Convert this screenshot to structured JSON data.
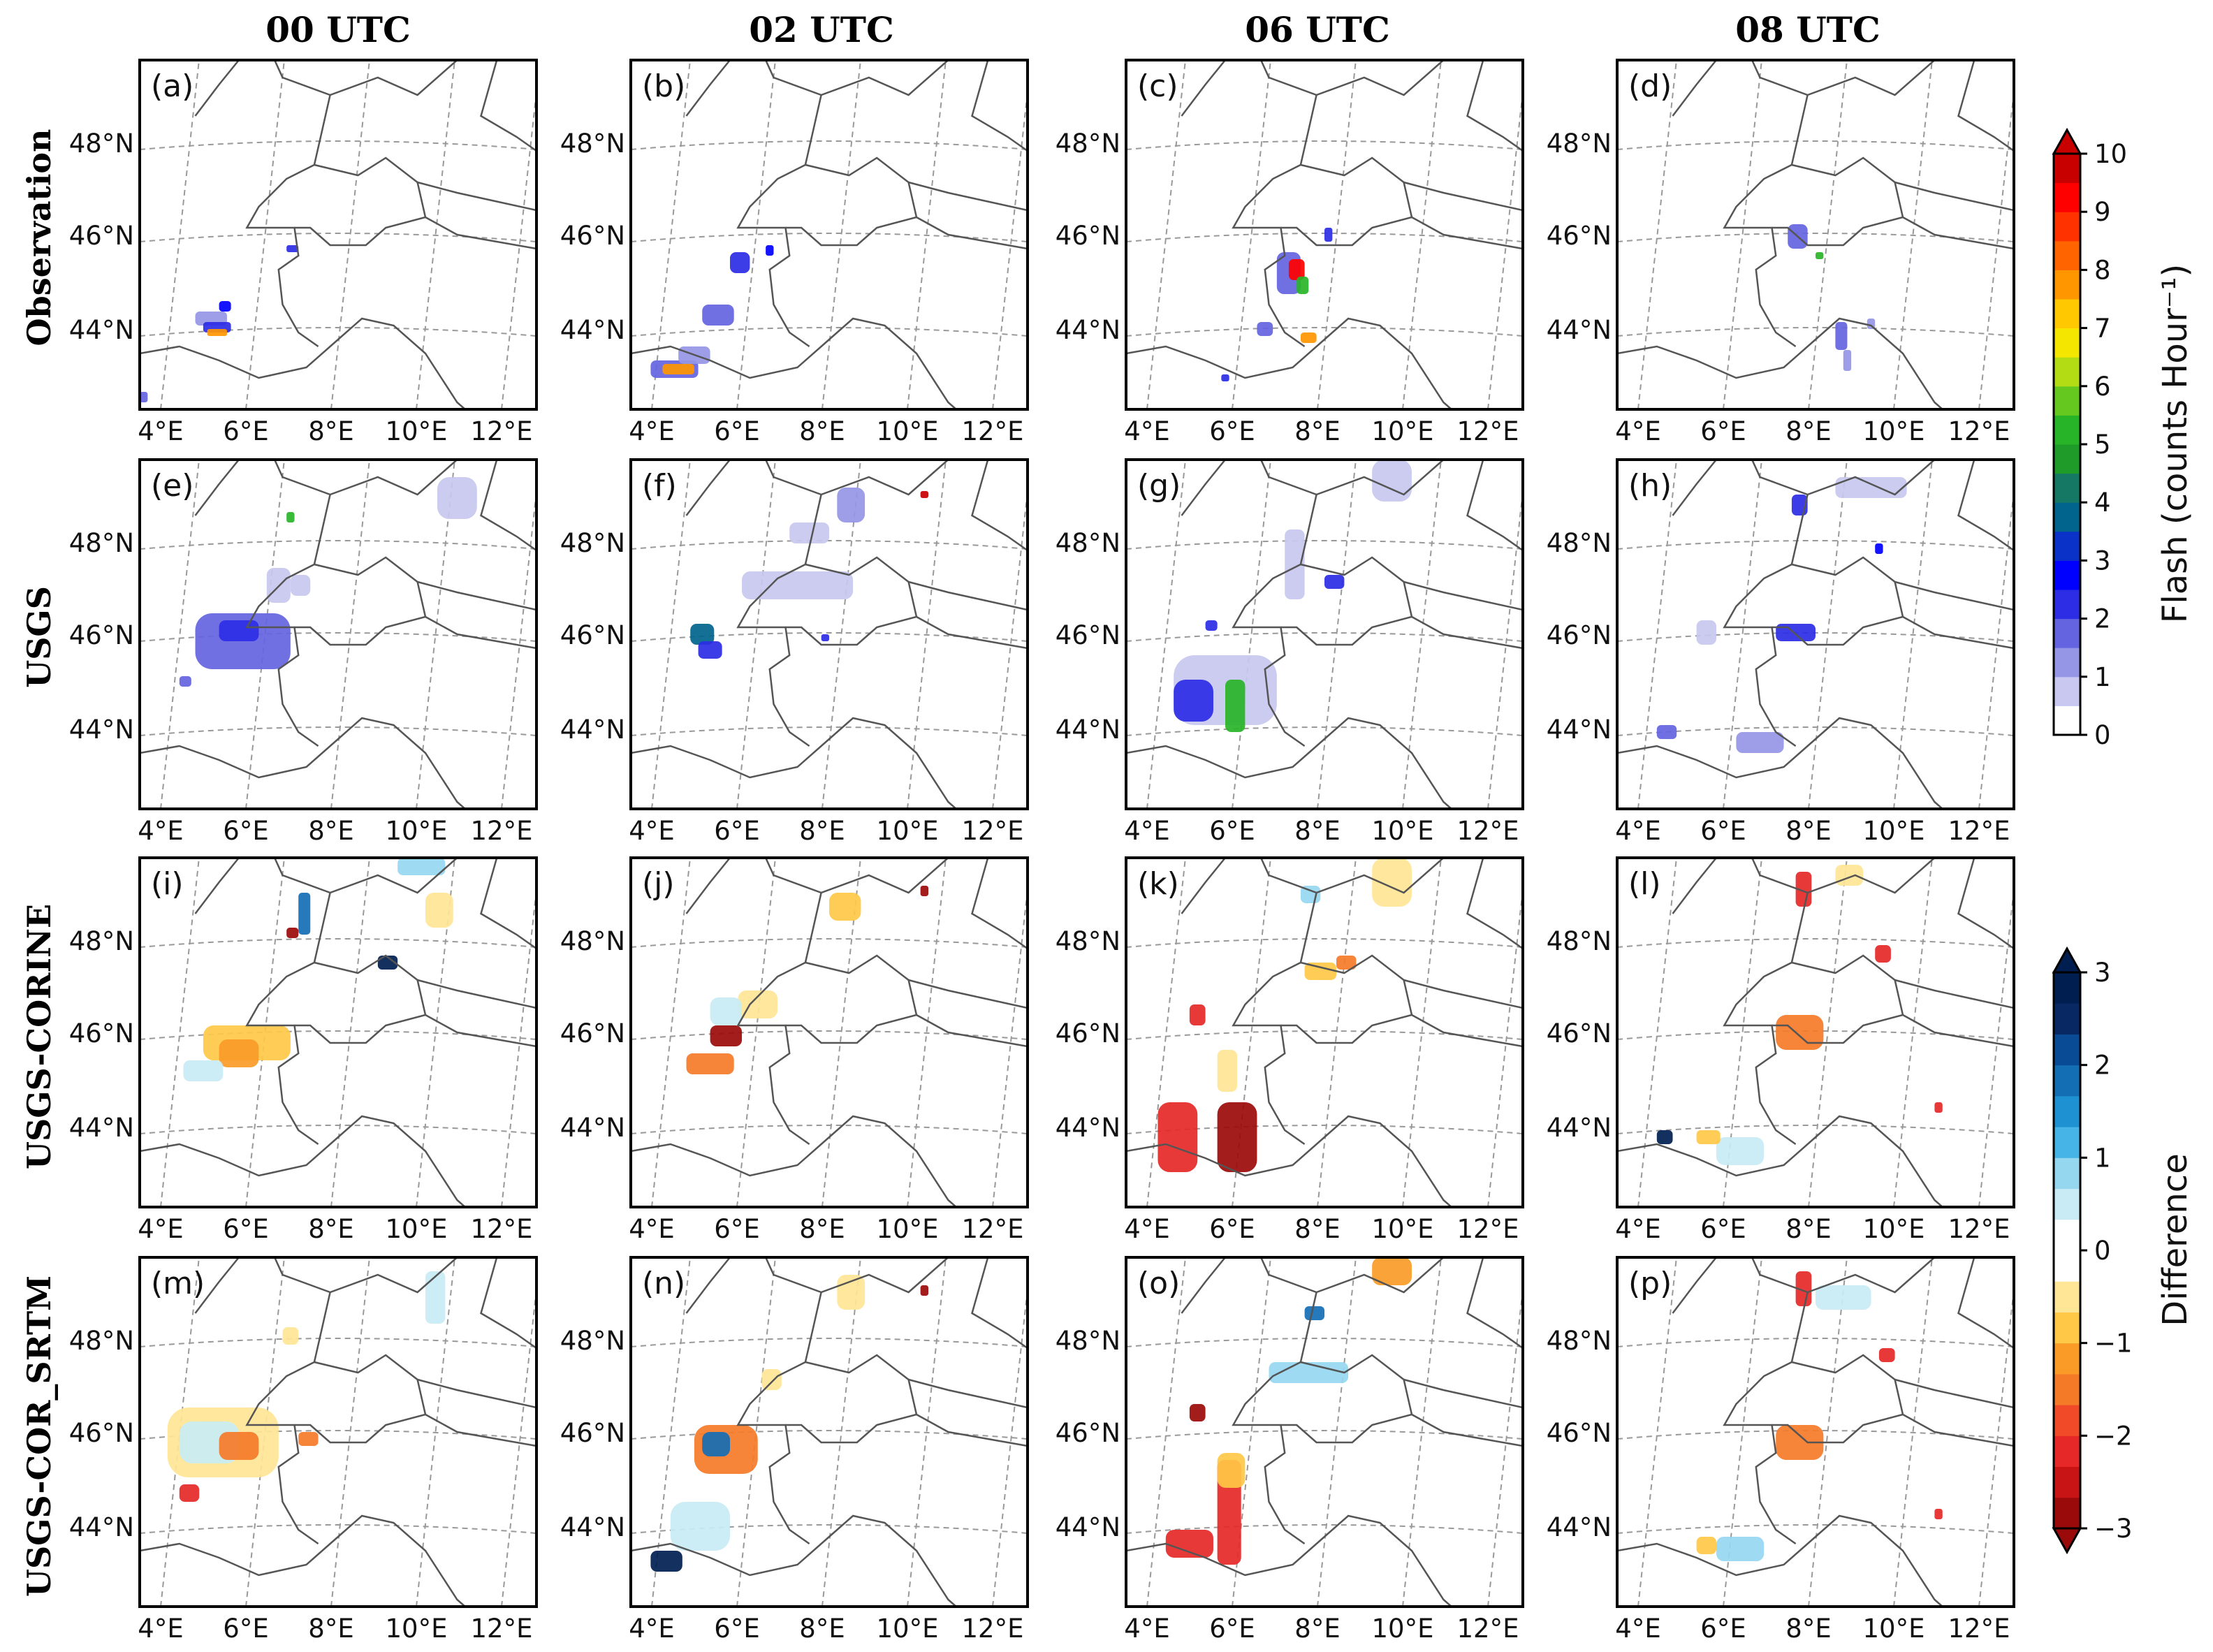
{
  "figure": {
    "column_titles": [
      "00 UTC",
      "02 UTC",
      "06 UTC",
      "08 UTC"
    ],
    "row_titles": [
      "Observation",
      "USGS",
      "USGS-CORINE",
      "USGS-COR_SRTM"
    ],
    "panel_labels": [
      "(a)",
      "(b)",
      "(c)",
      "(d)",
      "(e)",
      "(f)",
      "(g)",
      "(h)",
      "(i)",
      "(j)",
      "(k)",
      "(l)",
      "(m)",
      "(n)",
      "(o)",
      "(p)"
    ],
    "lon_ticks": [
      "4°E",
      "6°E",
      "8°E",
      "10°E",
      "12°E"
    ],
    "lat_ticks": [
      "44°N",
      "46°N",
      "48°N"
    ]
  },
  "colorbars": [
    {
      "title": "Flash (counts Hour⁻¹)",
      "ticks": [
        "0",
        "1",
        "2",
        "3",
        "4",
        "5",
        "6",
        "7",
        "8",
        "9",
        "10"
      ],
      "colors": [
        "#ffffff",
        "#c8c8f0",
        "#9696e6",
        "#6464e1",
        "#2d2de6",
        "#0000ff",
        "#0a32c8",
        "#00648c",
        "#147864",
        "#1e9b28",
        "#28b428",
        "#64c81e",
        "#b4dc14",
        "#f5e600",
        "#ffc800",
        "#ff9600",
        "#ff6400",
        "#ff3200",
        "#ff0000",
        "#c80000"
      ]
    },
    {
      "title": "Difference",
      "ticks": [
        "3",
        "2",
        "1",
        "0",
        "−1",
        "−2",
        "−3"
      ],
      "colors": [
        "#9b0a0a",
        "#c81414",
        "#e62828",
        "#f04a28",
        "#f57a28",
        "#fa9b28",
        "#ffc846",
        "#ffe696",
        "#ffffff",
        "#ffffff",
        "#c8ebf5",
        "#96d7f0",
        "#46b4e6",
        "#1e91d2",
        "#146eb4",
        "#0a4b96",
        "#082864",
        "#001e50"
      ]
    }
  ]
}
